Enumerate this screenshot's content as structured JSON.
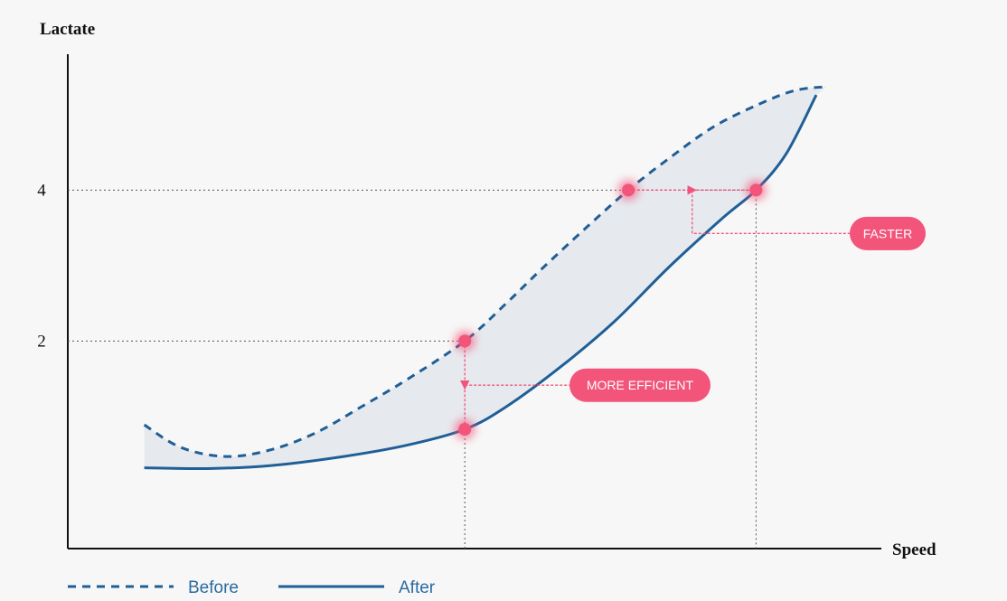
{
  "chart_data": {
    "type": "line",
    "x_label": "Speed",
    "y_label": "Lactate",
    "xlim": [
      0,
      100
    ],
    "ylim": [
      -0.75,
      5.8
    ],
    "yticks": [
      2,
      4
    ],
    "series": [
      {
        "name": "Before",
        "color": "#1f5f96",
        "dash": true,
        "x": [
          9.4,
          13.9,
          19.4,
          25,
          30.6,
          36.1,
          41.7,
          48.8,
          53.9,
          58.3,
          63.9,
          68.9,
          73.9,
          79.4,
          85,
          89.4,
          93.3
        ],
        "values": [
          0.89,
          0.59,
          0.47,
          0.56,
          0.79,
          1.13,
          1.49,
          2.0,
          2.5,
          2.96,
          3.52,
          4.0,
          4.42,
          4.84,
          5.14,
          5.32,
          5.37
        ]
      },
      {
        "name": "After",
        "color": "#1f5f96",
        "dash": false,
        "x": [
          9.4,
          17.2,
          25,
          33.9,
          41.7,
          48.8,
          53.9,
          60.6,
          67.2,
          73.9,
          80.6,
          84.6,
          88.3,
          92
        ],
        "values": [
          0.32,
          0.31,
          0.35,
          0.47,
          0.62,
          0.83,
          1.13,
          1.66,
          2.26,
          2.98,
          3.64,
          4.0,
          4.48,
          5.26
        ]
      }
    ],
    "band_color": "#e6eaef",
    "highlight_color": "#f2547a",
    "annotations": [
      {
        "text": "MORE EFFICIENT",
        "from": {
          "series": 0,
          "index": 7
        },
        "to": {
          "series": 1,
          "index": 5
        }
      },
      {
        "text": "FASTER",
        "from": {
          "series": 0,
          "index": 11
        },
        "to": {
          "series": 1,
          "index": 11
        }
      }
    ]
  }
}
